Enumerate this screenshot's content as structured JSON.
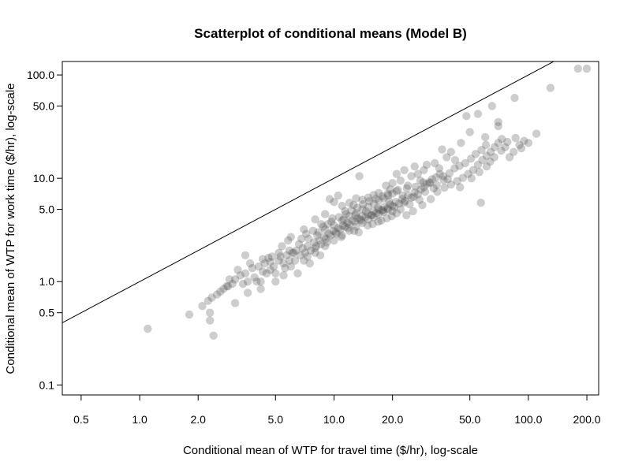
{
  "chart_data": {
    "type": "scatter",
    "title": "Scatterplot of conditional means (Model B)",
    "xlabel": "Conditional mean of WTP for travel time ($/hr), log-scale",
    "ylabel": "Conditional mean of WTP for work time ($/hr), log-scale",
    "x_scale": "log",
    "y_scale": "log",
    "xlim": [
      0.4,
      230
    ],
    "ylim": [
      0.08,
      135
    ],
    "x_ticks": [
      0.5,
      1.0,
      2.0,
      5.0,
      10.0,
      20.0,
      50.0,
      100.0,
      200.0
    ],
    "x_tick_labels": [
      "0.5",
      "1.0",
      "2.0",
      "5.0",
      "10.0",
      "20.0",
      "50.0",
      "100.0",
      "200.0"
    ],
    "y_ticks": [
      0.1,
      0.5,
      1.0,
      5.0,
      10.0,
      50.0,
      100.0
    ],
    "y_tick_labels": [
      "0.1",
      "0.5",
      "1.0",
      "5.0",
      "10.0",
      "50.0",
      "100.0"
    ],
    "reference_line": {
      "type": "y=x"
    },
    "grid": false,
    "legend": "none",
    "point_color": "#4a4a4a",
    "points": [
      [
        1.1,
        0.35
      ],
      [
        1.8,
        0.48
      ],
      [
        2.1,
        0.58
      ],
      [
        2.25,
        0.65
      ],
      [
        2.3,
        0.5
      ],
      [
        2.3,
        0.42
      ],
      [
        2.4,
        0.3
      ],
      [
        2.35,
        0.7
      ],
      [
        2.5,
        0.75
      ],
      [
        2.7,
        0.85
      ],
      [
        2.85,
        0.9
      ],
      [
        3.1,
        0.62
      ],
      [
        3.4,
        0.95
      ],
      [
        3.6,
        1.0
      ],
      [
        3.9,
        1.1
      ],
      [
        4.0,
        1.0
      ],
      [
        4.3,
        1.25
      ],
      [
        4.5,
        1.2
      ],
      [
        4.7,
        1.3
      ],
      [
        4.9,
        1.4
      ],
      [
        3.6,
        0.78
      ],
      [
        4.2,
        0.85
      ],
      [
        5.0,
        1.2
      ],
      [
        5.2,
        1.6
      ],
      [
        5.5,
        1.5
      ],
      [
        5.7,
        1.8
      ],
      [
        5.9,
        1.6
      ],
      [
        6.1,
        1.9
      ],
      [
        6.4,
        2.0
      ],
      [
        6.7,
        1.8
      ],
      [
        6.9,
        2.1
      ],
      [
        7.1,
        1.9
      ],
      [
        7.3,
        2.2
      ],
      [
        7.6,
        2.0
      ],
      [
        7.9,
        2.4
      ],
      [
        8.1,
        2.2
      ],
      [
        8.4,
        2.5
      ],
      [
        8.6,
        2.3
      ],
      [
        8.9,
        2.7
      ],
      [
        9.1,
        2.6
      ],
      [
        9.4,
        2.9
      ],
      [
        9.6,
        2.8
      ],
      [
        9.9,
        3.1
      ],
      [
        10.2,
        3.0
      ],
      [
        10.5,
        3.3
      ],
      [
        10.8,
        3.2
      ],
      [
        11.1,
        3.5
      ],
      [
        11.4,
        3.4
      ],
      [
        11.7,
        3.7
      ],
      [
        12.0,
        3.6
      ],
      [
        12.4,
        3.9
      ],
      [
        12.8,
        3.8
      ],
      [
        13.2,
        4.1
      ],
      [
        13.6,
        4.0
      ],
      [
        14.0,
        4.3
      ],
      [
        14.5,
        4.2
      ],
      [
        15.0,
        4.5
      ],
      [
        15.5,
        4.4
      ],
      [
        16.0,
        4.8
      ],
      [
        16.5,
        4.6
      ],
      [
        17.0,
        5.0
      ],
      [
        17.6,
        4.9
      ],
      [
        18.2,
        5.3
      ],
      [
        18.8,
        5.1
      ],
      [
        19.4,
        5.6
      ],
      [
        20.0,
        5.4
      ],
      [
        20.8,
        5.9
      ],
      [
        21.6,
        5.7
      ],
      [
        22.4,
        6.3
      ],
      [
        23.2,
        6.0
      ],
      [
        24.0,
        6.8
      ],
      [
        25.0,
        6.5
      ],
      [
        26.0,
        7.3
      ],
      [
        27.0,
        7.0
      ],
      [
        28.0,
        7.8
      ],
      [
        29.0,
        8.2
      ],
      [
        30.0,
        8.8
      ],
      [
        31.0,
        9.2
      ],
      [
        32.0,
        9.8
      ],
      [
        33.5,
        10.2
      ],
      [
        35.0,
        11.0
      ],
      [
        36.5,
        10.5
      ],
      [
        8.2,
        2.8
      ],
      [
        9.0,
        3.2
      ],
      [
        10.0,
        3.5
      ],
      [
        11.0,
        3.9
      ],
      [
        12.0,
        4.3
      ],
      [
        13.0,
        4.6
      ],
      [
        14.0,
        5.0
      ],
      [
        15.0,
        5.3
      ],
      [
        16.0,
        5.7
      ],
      [
        17.0,
        6.1
      ],
      [
        18.0,
        6.4
      ],
      [
        19.0,
        6.8
      ],
      [
        20.0,
        7.1
      ],
      [
        21.0,
        7.5
      ],
      [
        7.0,
        1.6
      ],
      [
        8.0,
        1.9
      ],
      [
        9.0,
        2.2
      ],
      [
        10.0,
        2.5
      ],
      [
        11.0,
        2.8
      ],
      [
        12.0,
        3.1
      ],
      [
        13.0,
        3.4
      ],
      [
        14.0,
        3.7
      ],
      [
        15.0,
        4.0
      ],
      [
        16.0,
        4.2
      ],
      [
        17.0,
        4.5
      ],
      [
        18.0,
        4.7
      ],
      [
        19.0,
        5.0
      ],
      [
        20.0,
        4.8
      ],
      [
        6.5,
        1.2
      ],
      [
        7.5,
        1.5
      ],
      [
        8.5,
        1.8
      ],
      [
        5.0,
        1.0
      ],
      [
        5.5,
        1.15
      ],
      [
        6.0,
        1.4
      ],
      [
        4.2,
        1.0
      ],
      [
        7.2,
        2.9
      ],
      [
        8.6,
        3.6
      ],
      [
        9.8,
        4.1
      ],
      [
        11.4,
        4.8
      ],
      [
        12.6,
        5.5
      ],
      [
        13.4,
        3.0
      ],
      [
        15.8,
        3.6
      ],
      [
        17.5,
        3.9
      ],
      [
        19.8,
        4.3
      ],
      [
        22.0,
        5.0
      ],
      [
        24.5,
        5.6
      ],
      [
        27.5,
        6.2
      ],
      [
        25.5,
        4.8
      ],
      [
        28.5,
        5.5
      ],
      [
        31.5,
        6.3
      ],
      [
        34.0,
        7.4
      ],
      [
        37.0,
        8.1
      ],
      [
        40.0,
        8.7
      ],
      [
        43.0,
        9.4
      ],
      [
        46.0,
        10.1
      ],
      [
        49.0,
        11.0
      ],
      [
        52.0,
        12.0
      ],
      [
        55.0,
        13.5
      ],
      [
        58.0,
        15.0
      ],
      [
        61.0,
        16.5
      ],
      [
        64.0,
        18.0
      ],
      [
        67.0,
        20.0
      ],
      [
        70.0,
        22.0
      ],
      [
        73.0,
        24.0
      ],
      [
        76.0,
        20.0
      ],
      [
        80.0,
        16.0
      ],
      [
        84.0,
        18.0
      ],
      [
        90.0,
        21.0
      ],
      [
        95.0,
        23.0
      ],
      [
        100.0,
        22.0
      ],
      [
        110.0,
        27.0
      ],
      [
        130.0,
        75.0
      ],
      [
        180.0,
        115.0
      ],
      [
        200.0,
        115.0
      ],
      [
        65.0,
        50.0
      ],
      [
        85.0,
        60.0
      ],
      [
        70.0,
        35.0
      ],
      [
        70.0,
        32.0
      ],
      [
        60.0,
        25.0
      ],
      [
        55.0,
        42.0
      ],
      [
        48.0,
        40.0
      ],
      [
        50.0,
        28.0
      ],
      [
        45.0,
        22.0
      ],
      [
        40.0,
        18.0
      ],
      [
        42.0,
        15.0
      ],
      [
        38.0,
        16.0
      ],
      [
        36.0,
        19.0
      ],
      [
        33.0,
        14.0
      ],
      [
        30.0,
        13.5
      ],
      [
        29.0,
        12.0
      ],
      [
        27.0,
        11.0
      ],
      [
        26.0,
        13.0
      ],
      [
        25.0,
        10.5
      ],
      [
        23.0,
        12.0
      ],
      [
        22.0,
        9.5
      ],
      [
        21.0,
        11.0
      ],
      [
        24.0,
        8.5
      ],
      [
        20.0,
        9.0
      ],
      [
        18.5,
        8.5
      ],
      [
        19.5,
        7.8
      ],
      [
        17.0,
        7.2
      ],
      [
        16.0,
        6.9
      ],
      [
        15.0,
        6.5
      ],
      [
        14.0,
        6.2
      ],
      [
        13.0,
        6.4
      ],
      [
        12.0,
        5.8
      ],
      [
        11.0,
        5.4
      ],
      [
        10.0,
        5.9
      ],
      [
        9.0,
        4.5
      ],
      [
        8.0,
        4.0
      ],
      [
        13.5,
        10.5
      ],
      [
        9.5,
        6.3
      ],
      [
        10.5,
        6.8
      ],
      [
        7.0,
        3.2
      ],
      [
        6.0,
        2.7
      ],
      [
        6.2,
        1.9
      ],
      [
        5.8,
        2.5
      ],
      [
        5.2,
        1.9
      ],
      [
        4.6,
        1.7
      ],
      [
        4.4,
        1.5
      ],
      [
        3.8,
        1.35
      ],
      [
        3.3,
        1.15
      ],
      [
        3.0,
        0.95
      ],
      [
        2.9,
        1.05
      ],
      [
        3.2,
        1.3
      ],
      [
        4.8,
        1.75
      ],
      [
        3.7,
        1.5
      ],
      [
        3.5,
        1.8
      ],
      [
        4.3,
        1.65
      ],
      [
        5.4,
        2.2
      ],
      [
        6.8,
        2.6
      ],
      [
        7.8,
        3.1
      ],
      [
        8.8,
        3.4
      ],
      [
        9.7,
        3.8
      ],
      [
        10.6,
        4.2
      ],
      [
        11.5,
        4.5
      ],
      [
        12.3,
        4.9
      ],
      [
        13.2,
        5.2
      ],
      [
        14.1,
        5.6
      ],
      [
        15.2,
        6.0
      ],
      [
        16.4,
        6.3
      ],
      [
        17.7,
        6.7
      ],
      [
        18.9,
        7.1
      ],
      [
        21.3,
        7.7
      ],
      [
        23.7,
        8.0
      ],
      [
        26.3,
        8.3
      ],
      [
        28.8,
        9.1
      ],
      [
        31.2,
        9.0
      ],
      [
        33.8,
        8.6
      ],
      [
        36.7,
        9.6
      ],
      [
        39.3,
        11.2
      ],
      [
        41.7,
        12.5
      ],
      [
        44.2,
        13.2
      ],
      [
        47.3,
        14.0
      ],
      [
        50.7,
        15.5
      ],
      [
        53.6,
        17.2
      ],
      [
        57.4,
        18.8
      ],
      [
        60.5,
        21.0
      ],
      [
        63.6,
        14.5
      ],
      [
        66.8,
        16.0
      ],
      [
        72.5,
        18.5
      ],
      [
        78.0,
        22.5
      ],
      [
        86.0,
        24.5
      ],
      [
        92.0,
        19.5
      ],
      [
        57.0,
        5.8
      ],
      [
        44.5,
        8.2
      ],
      [
        51.0,
        10.0
      ],
      [
        56.0,
        11.5
      ],
      [
        61.0,
        13.0
      ],
      [
        38.5,
        9.8
      ],
      [
        34.8,
        12.5
      ],
      [
        27.8,
        9.5
      ],
      [
        22.6,
        6.8
      ],
      [
        19.2,
        6.0
      ],
      [
        16.8,
        5.2
      ],
      [
        14.6,
        4.8
      ],
      [
        12.9,
        4.4
      ],
      [
        11.2,
        4.0
      ],
      [
        9.3,
        3.6
      ],
      [
        8.3,
        3.0
      ],
      [
        7.4,
        2.6
      ],
      [
        6.6,
        2.3
      ],
      [
        5.9,
        2.0
      ],
      [
        5.3,
        1.75
      ],
      [
        4.7,
        1.55
      ],
      [
        4.1,
        1.4
      ],
      [
        3.5,
        1.2
      ],
      [
        3.1,
        1.05
      ],
      [
        2.8,
        0.9
      ],
      [
        2.6,
        0.8
      ],
      [
        10.3,
        2.9
      ],
      [
        11.8,
        3.3
      ],
      [
        13.8,
        3.9
      ],
      [
        15.7,
        4.4
      ],
      [
        17.9,
        4.9
      ],
      [
        20.4,
        5.3
      ],
      [
        22.9,
        5.8
      ],
      [
        25.7,
        6.6
      ],
      [
        29.4,
        7.4
      ],
      [
        32.6,
        8.0
      ],
      [
        9.2,
        2.4
      ],
      [
        8.0,
        2.1
      ],
      [
        7.3,
        1.75
      ],
      [
        6.3,
        1.6
      ],
      [
        5.6,
        1.35
      ],
      [
        10.9,
        2.7
      ],
      [
        12.7,
        3.1
      ],
      [
        14.9,
        3.5
      ],
      [
        16.9,
        3.8
      ],
      [
        18.7,
        4.1
      ],
      [
        21.0,
        4.6
      ],
      [
        23.6,
        4.4
      ]
    ]
  }
}
